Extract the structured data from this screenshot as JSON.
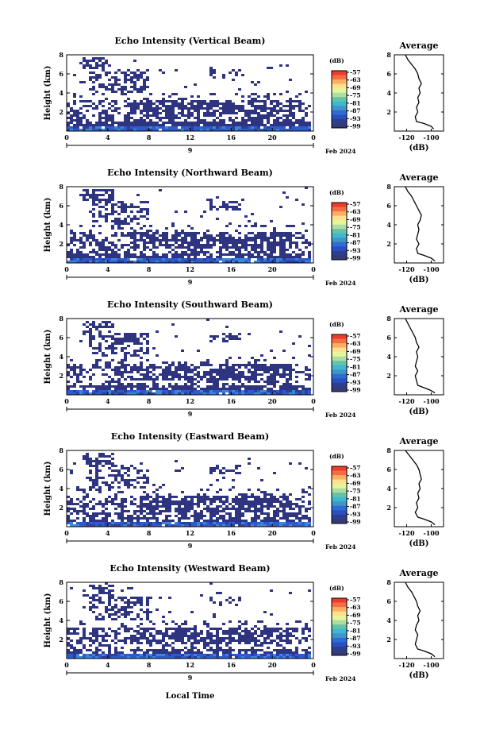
{
  "figure": {
    "xlabel": "Local Time",
    "date_label": "Feb 2024",
    "day_label": "9"
  },
  "chart_data": [
    {
      "type": "heatmap",
      "title": "Echo Intensity (Vertical Beam)",
      "ylabel": "Height (km)",
      "xlim": [
        0,
        24
      ],
      "ylim": [
        0,
        8
      ],
      "xticks": [
        "0",
        "4",
        "8",
        "12",
        "16",
        "20",
        "0"
      ],
      "yticks": [
        "2",
        "4",
        "6",
        "8"
      ],
      "colorbar": {
        "unit": "(dB)",
        "ticks": [
          "-57",
          "-63",
          "-69",
          "-75",
          "-81",
          "-87",
          "-93",
          "-99"
        ]
      },
      "profile": {
        "title": "Average",
        "xlabel": "(dB)",
        "xticks": [
          "-120",
          "-100"
        ],
        "yticks": [
          "2",
          "4",
          "6",
          "8"
        ],
        "points": [
          [
            -98,
            0.2
          ],
          [
            -100,
            0.5
          ],
          [
            -106,
            0.8
          ],
          [
            -112,
            1.0
          ],
          [
            -113,
            1.5
          ],
          [
            -111,
            2.0
          ],
          [
            -112,
            2.5
          ],
          [
            -110,
            3.0
          ],
          [
            -111,
            3.5
          ],
          [
            -109,
            4.0
          ],
          [
            -110,
            4.5
          ],
          [
            -108,
            5.0
          ],
          [
            -110,
            5.5
          ],
          [
            -111,
            6.0
          ],
          [
            -113,
            6.5
          ],
          [
            -116,
            7.0
          ],
          [
            -119,
            7.5
          ],
          [
            -121,
            8.0
          ]
        ]
      }
    },
    {
      "type": "heatmap",
      "title": "Echo Intensity (Northward Beam)",
      "ylabel": "Height (km)",
      "xlim": [
        0,
        24
      ],
      "ylim": [
        0,
        8
      ],
      "xticks": [
        "0",
        "4",
        "8",
        "12",
        "16",
        "20",
        "0"
      ],
      "yticks": [
        "2",
        "4",
        "6",
        "8"
      ],
      "colorbar": {
        "unit": "(dB)",
        "ticks": [
          "-57",
          "-63",
          "-69",
          "-75",
          "-81",
          "-87",
          "-93",
          "-99"
        ]
      },
      "profile": {
        "title": "Average",
        "xlabel": "(dB)",
        "xticks": [
          "-120",
          "-100"
        ],
        "yticks": [
          "2",
          "4",
          "6",
          "8"
        ],
        "points": [
          [
            -97,
            0.2
          ],
          [
            -100,
            0.5
          ],
          [
            -106,
            0.8
          ],
          [
            -111,
            1.0
          ],
          [
            -112,
            1.5
          ],
          [
            -110,
            2.0
          ],
          [
            -112,
            2.5
          ],
          [
            -111,
            3.0
          ],
          [
            -110,
            3.5
          ],
          [
            -111,
            4.0
          ],
          [
            -109,
            4.5
          ],
          [
            -108,
            5.0
          ],
          [
            -110,
            5.5
          ],
          [
            -112,
            6.0
          ],
          [
            -114,
            6.5
          ],
          [
            -116,
            7.0
          ],
          [
            -119,
            7.5
          ],
          [
            -121,
            8.0
          ]
        ]
      }
    },
    {
      "type": "heatmap",
      "title": "Echo Intensity (Southward Beam)",
      "ylabel": "Height (km)",
      "xlim": [
        0,
        24
      ],
      "ylim": [
        0,
        8
      ],
      "xticks": [
        "0",
        "4",
        "8",
        "12",
        "16",
        "20",
        "0"
      ],
      "yticks": [
        "2",
        "4",
        "6",
        "8"
      ],
      "colorbar": {
        "unit": "(dB)",
        "ticks": [
          "-57",
          "-63",
          "-69",
          "-75",
          "-81",
          "-87",
          "-93",
          "-99"
        ]
      },
      "profile": {
        "title": "Average",
        "xlabel": "(dB)",
        "xticks": [
          "-120",
          "-100"
        ],
        "yticks": [
          "2",
          "4",
          "6",
          "8"
        ],
        "points": [
          [
            -97,
            0.2
          ],
          [
            -101,
            0.5
          ],
          [
            -107,
            0.8
          ],
          [
            -111,
            1.0
          ],
          [
            -112,
            1.5
          ],
          [
            -113,
            2.0
          ],
          [
            -111,
            2.5
          ],
          [
            -113,
            3.0
          ],
          [
            -112,
            3.5
          ],
          [
            -111,
            4.0
          ],
          [
            -112,
            4.5
          ],
          [
            -110,
            5.0
          ],
          [
            -112,
            5.5
          ],
          [
            -113,
            6.0
          ],
          [
            -115,
            6.5
          ],
          [
            -117,
            7.0
          ],
          [
            -119,
            7.5
          ],
          [
            -121,
            8.0
          ]
        ]
      }
    },
    {
      "type": "heatmap",
      "title": "Echo Intensity (Eastward Beam)",
      "ylabel": "Height (km)",
      "xlim": [
        0,
        24
      ],
      "ylim": [
        0,
        8
      ],
      "xticks": [
        "0",
        "4",
        "8",
        "12",
        "16",
        "20",
        "0"
      ],
      "yticks": [
        "2",
        "4",
        "6",
        "8"
      ],
      "colorbar": {
        "unit": "(dB)",
        "ticks": [
          "-57",
          "-63",
          "-69",
          "-75",
          "-81",
          "-87",
          "-93",
          "-99"
        ]
      },
      "profile": {
        "title": "Average",
        "xlabel": "(dB)",
        "xticks": [
          "-120",
          "-100"
        ],
        "yticks": [
          "2",
          "4",
          "6",
          "8"
        ],
        "points": [
          [
            -97,
            0.2
          ],
          [
            -100,
            0.5
          ],
          [
            -106,
            0.8
          ],
          [
            -111,
            1.0
          ],
          [
            -113,
            1.5
          ],
          [
            -111,
            2.0
          ],
          [
            -112,
            2.5
          ],
          [
            -110,
            3.0
          ],
          [
            -111,
            3.5
          ],
          [
            -109,
            4.0
          ],
          [
            -110,
            4.5
          ],
          [
            -108,
            5.0
          ],
          [
            -109,
            5.5
          ],
          [
            -110,
            6.0
          ],
          [
            -112,
            6.5
          ],
          [
            -115,
            7.0
          ],
          [
            -118,
            7.5
          ],
          [
            -121,
            8.0
          ]
        ]
      }
    },
    {
      "type": "heatmap",
      "title": "Echo Intensity (Westward Beam)",
      "ylabel": "Height (km)",
      "xlim": [
        0,
        24
      ],
      "ylim": [
        0,
        8
      ],
      "xticks": [
        "0",
        "4",
        "8",
        "12",
        "16",
        "20",
        "0"
      ],
      "yticks": [
        "2",
        "4",
        "6",
        "8"
      ],
      "colorbar": {
        "unit": "(dB)",
        "ticks": [
          "-57",
          "-63",
          "-69",
          "-75",
          "-81",
          "-87",
          "-93",
          "-99"
        ]
      },
      "profile": {
        "title": "Average",
        "xlabel": "(dB)",
        "xticks": [
          "-120",
          "-100"
        ],
        "yticks": [
          "2",
          "4",
          "6",
          "8"
        ],
        "points": [
          [
            -97,
            0.2
          ],
          [
            -100,
            0.5
          ],
          [
            -106,
            0.8
          ],
          [
            -111,
            1.0
          ],
          [
            -113,
            1.5
          ],
          [
            -112,
            2.0
          ],
          [
            -111,
            2.5
          ],
          [
            -113,
            3.0
          ],
          [
            -112,
            3.5
          ],
          [
            -110,
            4.0
          ],
          [
            -111,
            4.5
          ],
          [
            -109,
            5.0
          ],
          [
            -111,
            5.5
          ],
          [
            -112,
            6.0
          ],
          [
            -114,
            6.5
          ],
          [
            -116,
            7.0
          ],
          [
            -119,
            7.5
          ],
          [
            -121,
            8.0
          ]
        ]
      }
    }
  ]
}
